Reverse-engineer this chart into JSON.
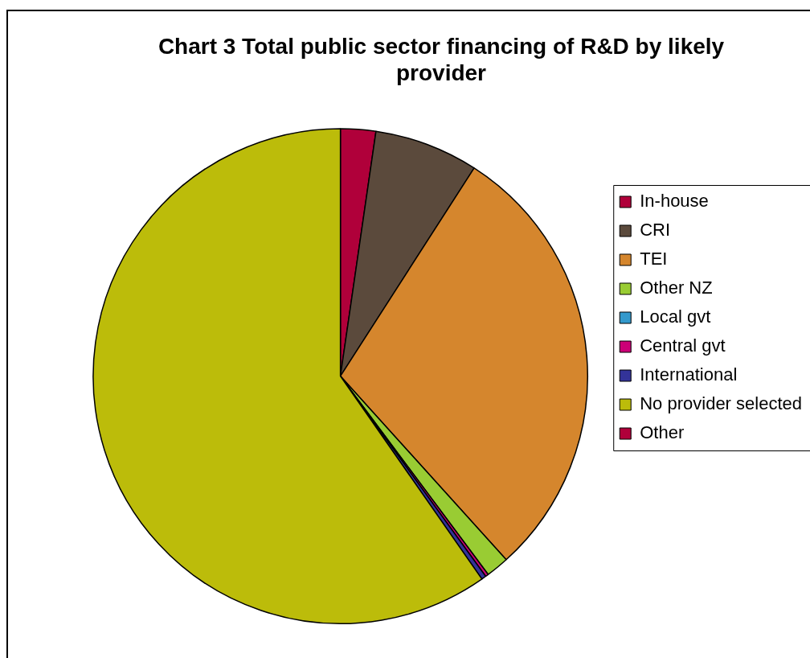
{
  "chart_data": {
    "type": "pie",
    "title": "Chart 3 Total public sector financing of R&D by likely provider",
    "categories": [
      "In-house",
      "CRI",
      "TEI",
      "Other NZ",
      "Local gvt",
      "Central gvt",
      "International",
      "No provider selected",
      "Other"
    ],
    "values": [
      2.3,
      6.8,
      29.2,
      1.5,
      0.0,
      0.2,
      0.3,
      59.7,
      0.0
    ],
    "colors": [
      "#b0003a",
      "#5b4a3c",
      "#d5862d",
      "#99cc33",
      "#3399cc",
      "#cc0077",
      "#333399",
      "#bcbc0a",
      "#b0003a"
    ],
    "legend": "right"
  }
}
